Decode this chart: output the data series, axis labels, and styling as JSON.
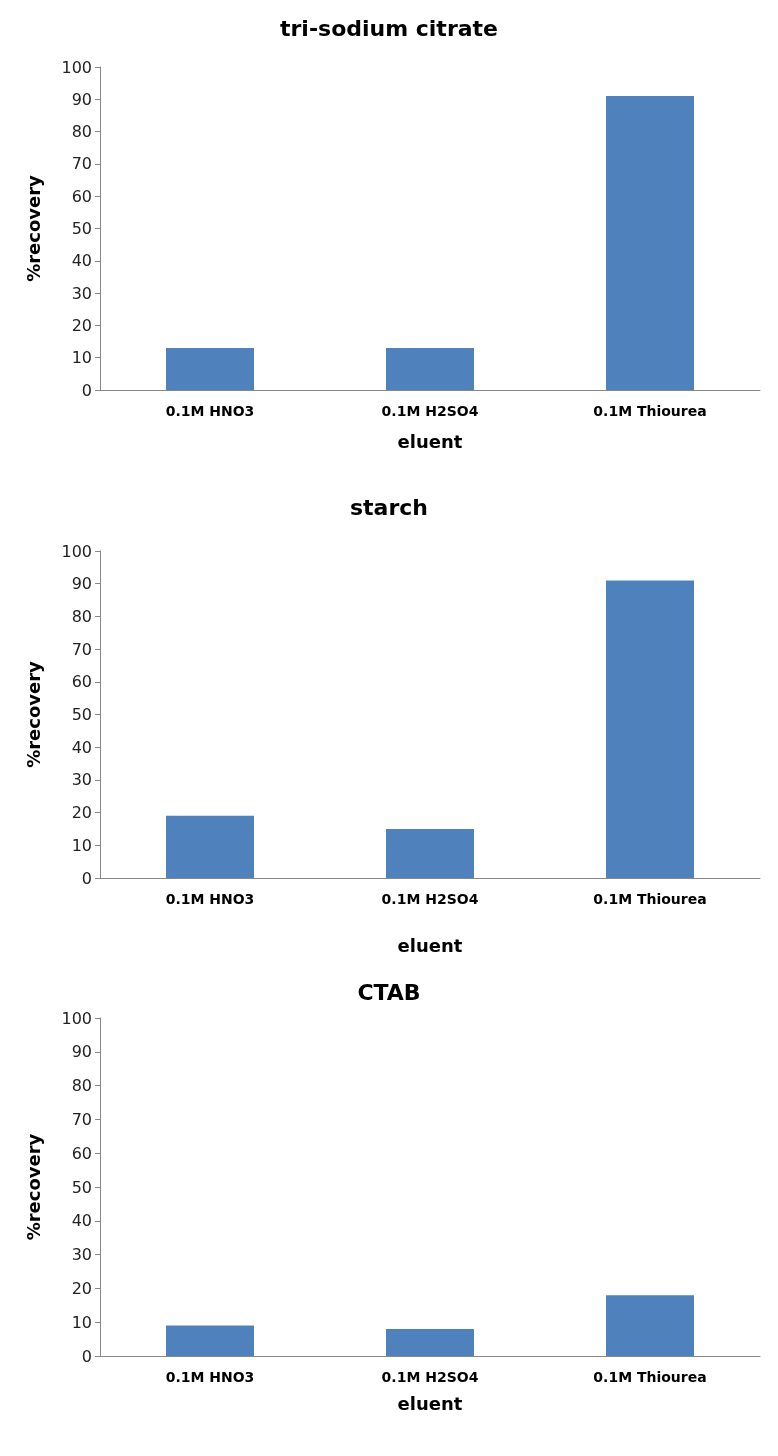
{
  "chart_data": [
    {
      "type": "bar",
      "title": "tri-sodium citrate",
      "xlabel": "eluent",
      "ylabel": "%recovery",
      "categories": [
        "0.1M HNO3",
        "0.1M H2SO4",
        "0.1M Thiourea"
      ],
      "values": [
        13,
        13,
        91
      ],
      "color": "#4f81bd",
      "ylim": [
        0,
        100
      ],
      "yticks": [
        0,
        10,
        20,
        30,
        40,
        50,
        60,
        70,
        80,
        90,
        100
      ],
      "grid": false
    },
    {
      "type": "bar",
      "title": "starch",
      "xlabel": "eluent",
      "ylabel": "%recovery",
      "categories": [
        "0.1M HNO3",
        "0.1M H2SO4",
        "0.1M Thiourea"
      ],
      "values": [
        19,
        15,
        91
      ],
      "color": "#4f81bd",
      "ylim": [
        0,
        100
      ],
      "yticks": [
        0,
        10,
        20,
        30,
        40,
        50,
        60,
        70,
        80,
        90,
        100
      ],
      "grid": false
    },
    {
      "type": "bar",
      "title": "CTAB",
      "xlabel": "eluent",
      "ylabel": "%recovery",
      "categories": [
        "0.1M HNO3",
        "0.1M H2SO4",
        "0.1M Thiourea"
      ],
      "values": [
        9,
        8,
        18
      ],
      "color": "#4f81bd",
      "ylim": [
        0,
        100
      ],
      "yticks": [
        0,
        10,
        20,
        30,
        40,
        50,
        60,
        70,
        80,
        90,
        100
      ],
      "grid": false
    }
  ]
}
